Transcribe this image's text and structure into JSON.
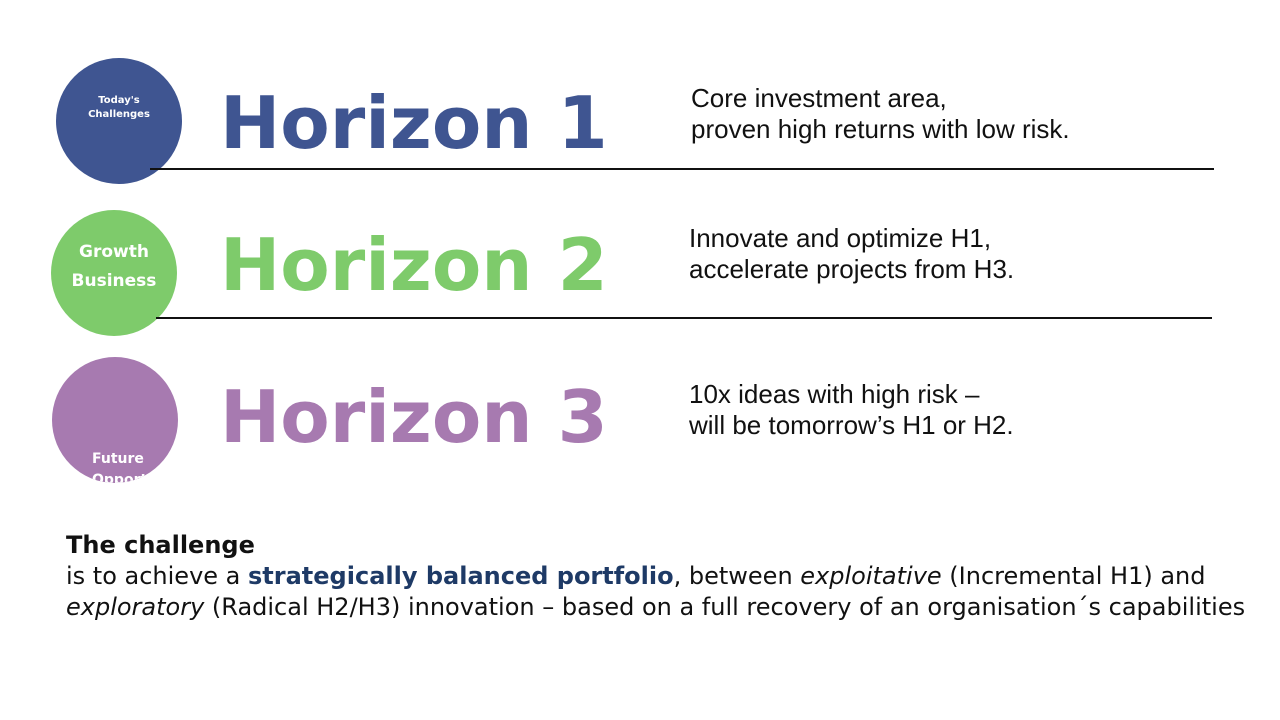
{
  "horizons": [
    {
      "circle_label_lines": [
        "Today's",
        "Challenges"
      ],
      "title": "Horizon 1",
      "desc_lines": [
        "Core investment area,",
        "proven high returns with low risk."
      ],
      "color": "#3f5591"
    },
    {
      "circle_label_lines": [
        "Growth",
        "Business"
      ],
      "title": "Horizon 2",
      "desc_lines": [
        "Innovate and optimize H1,",
        "accelerate projects from H3."
      ],
      "color": "#7ecb6b"
    },
    {
      "circle_label_lines": [
        "Future",
        "Opportunities"
      ],
      "title": "Horizon 3",
      "desc_lines": [
        "10x ideas with high risk –",
        "will be tomorrow’s H1 or H2."
      ],
      "color": "#a77ab0"
    }
  ],
  "challenge": {
    "title": "The challenge",
    "intro": "is to achieve a ",
    "highlight": "strategically balanced portfolio",
    "part2": ", between ",
    "italic1": "exploitative",
    "part3": " (Incremental H1) and ",
    "italic2": "exploratory",
    "part4": " (Radical H2/H3) innovation – based on a full recovery of an organisation´s capabilities",
    "highlight_color": "#1e3a66"
  }
}
